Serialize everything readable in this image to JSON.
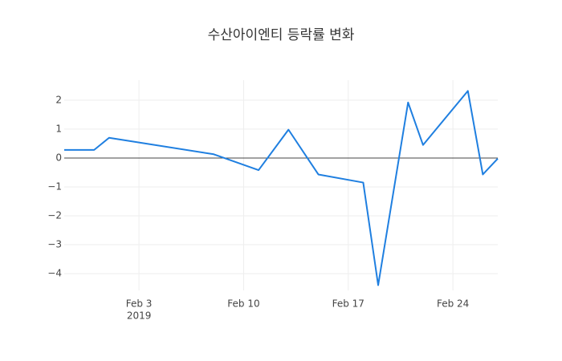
{
  "chart_data": {
    "type": "line",
    "title": "수산아이엔티 등락률 변화",
    "x": [
      "2019-01-29",
      "2019-01-31",
      "2019-02-01",
      "2019-02-08",
      "2019-02-11",
      "2019-02-13",
      "2019-02-15",
      "2019-02-18",
      "2019-02-19",
      "2019-02-21",
      "2019-02-22",
      "2019-02-25",
      "2019-02-26",
      "2019-02-27"
    ],
    "series": [
      {
        "name": "등락률",
        "color": "#1f7fe0",
        "values": [
          0.28,
          0.28,
          0.7,
          0.13,
          -0.42,
          0.98,
          -0.57,
          -0.85,
          -4.4,
          1.92,
          0.45,
          2.32,
          -0.57,
          -0.02
        ]
      }
    ],
    "xlim": [
      "2019-01-29",
      "2019-02-27"
    ],
    "xticks": [
      {
        "value": "2019-02-03",
        "label": "Feb 3",
        "sublabel": "2019"
      },
      {
        "value": "2019-02-10",
        "label": "Feb 10"
      },
      {
        "value": "2019-02-17",
        "label": "Feb 17"
      },
      {
        "value": "2019-02-24",
        "label": "Feb 24"
      }
    ],
    "ylim": [
      -4.58,
      2.69
    ],
    "yticks": [
      {
        "value": -4,
        "label": "−4"
      },
      {
        "value": -3,
        "label": "−3"
      },
      {
        "value": -2,
        "label": "−2"
      },
      {
        "value": -1,
        "label": "−1"
      },
      0,
      1,
      2
    ],
    "grid": true,
    "zeroline": true
  }
}
